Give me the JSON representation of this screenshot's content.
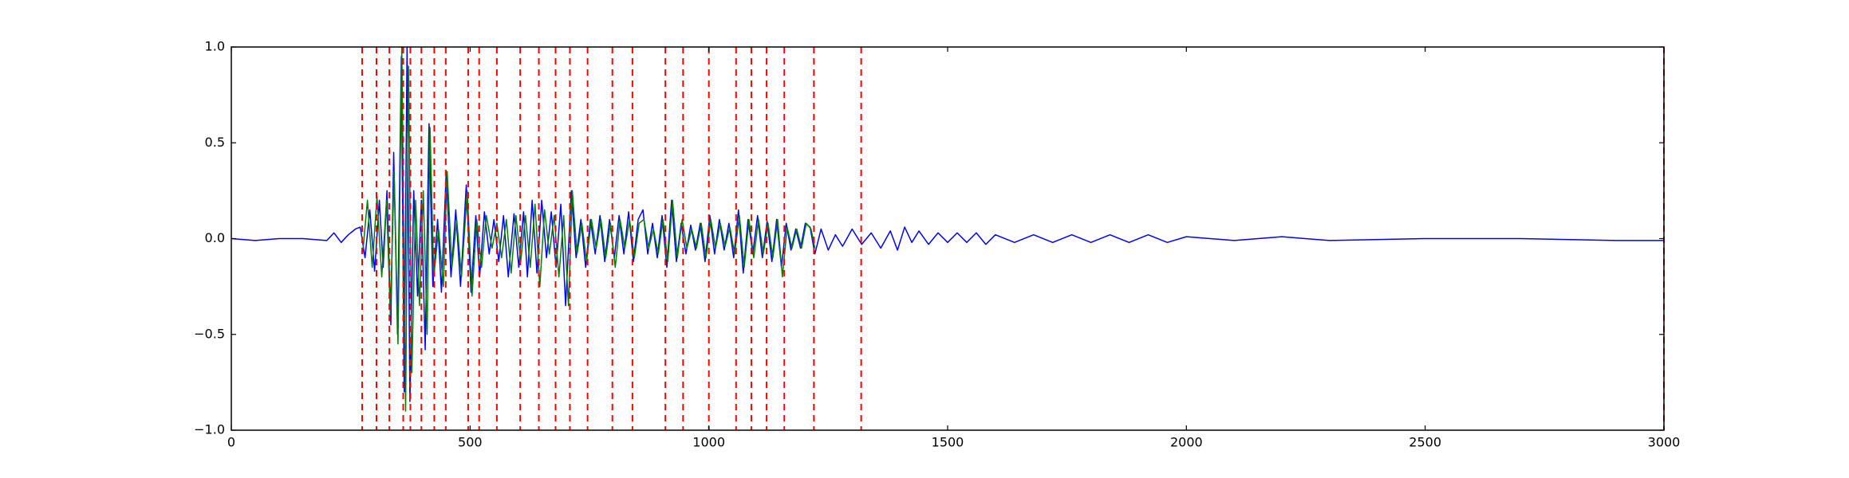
{
  "chart_data": {
    "type": "line",
    "xlim": [
      0,
      3000
    ],
    "ylim": [
      -1,
      1
    ],
    "xticks": [
      0,
      500,
      1000,
      1500,
      2000,
      2500,
      3000
    ],
    "yticks": [
      {
        "value": 1,
        "label": "1.0"
      },
      {
        "value": 0.5,
        "label": "0.5"
      },
      {
        "value": 0,
        "label": "0.0"
      },
      {
        "value": -0.5,
        "label": "−0.5"
      },
      {
        "value": -1,
        "label": "−1.0"
      }
    ],
    "vlines": [
      274,
      304,
      331,
      360,
      375,
      398,
      425,
      449,
      496,
      519,
      556,
      605,
      644,
      679,
      709,
      746,
      798,
      840,
      909,
      946,
      1000,
      1057,
      1089,
      1121,
      1158,
      1220,
      1319,
      3000
    ],
    "vline_color": "#ff0000",
    "series": [
      {
        "color": "#0000ff",
        "x": [
          0,
          50,
          100,
          150,
          200,
          215,
          230,
          245,
          260,
          270,
          280,
          290,
          300,
          310,
          318,
          326,
          334,
          340,
          348,
          356,
          362,
          368,
          374,
          382,
          390,
          398,
          406,
          414,
          422,
          432,
          440,
          450,
          460,
          470,
          480,
          492,
          502,
          512,
          520,
          530,
          540,
          550,
          560,
          570,
          580,
          592,
          602,
          612,
          620,
          630,
          640,
          650,
          660,
          670,
          680,
          690,
          700,
          712,
          722,
          732,
          742,
          752,
          762,
          772,
          782,
          792,
          802,
          812,
          822,
          832,
          842,
          852,
          862,
          872,
          882,
          892,
          902,
          912,
          922,
          932,
          942,
          952,
          962,
          972,
          982,
          992,
          1002,
          1012,
          1022,
          1032,
          1042,
          1052,
          1062,
          1072,
          1082,
          1092,
          1102,
          1112,
          1122,
          1132,
          1142,
          1152,
          1162,
          1172,
          1182,
          1192,
          1202,
          1212,
          1222,
          1235,
          1250,
          1265,
          1280,
          1300,
          1320,
          1340,
          1360,
          1380,
          1395,
          1410,
          1425,
          1440,
          1460,
          1480,
          1500,
          1520,
          1540,
          1560,
          1580,
          1600,
          1640,
          1680,
          1720,
          1760,
          1800,
          1840,
          1880,
          1920,
          1960,
          2000,
          2100,
          2200,
          2300,
          2500,
          2700,
          2900,
          3000
        ],
        "values": [
          0,
          -0.01,
          0,
          0,
          -0.01,
          0.03,
          -0.02,
          0.02,
          0.05,
          0.06,
          -0.1,
          0.15,
          -0.17,
          0.2,
          -0.15,
          0.25,
          -0.45,
          0.45,
          -0.5,
          0.95,
          -0.8,
          1.0,
          -0.85,
          0.25,
          -0.3,
          0.2,
          -0.58,
          0.6,
          -0.25,
          0.1,
          -0.28,
          0.35,
          -0.2,
          0.15,
          -0.25,
          0.28,
          -0.28,
          0.12,
          -0.2,
          0.14,
          -0.08,
          0.1,
          -0.12,
          0.12,
          -0.2,
          0.13,
          -0.15,
          0.14,
          -0.2,
          0.2,
          -0.18,
          0.2,
          -0.1,
          0.14,
          -0.15,
          0.18,
          -0.35,
          0.25,
          -0.1,
          0.1,
          -0.15,
          0.1,
          -0.08,
          0.12,
          -0.12,
          0.1,
          -0.1,
          0.12,
          -0.08,
          0.14,
          -0.12,
          0.1,
          0.15,
          -0.08,
          0.08,
          -0.1,
          0.12,
          -0.15,
          0.2,
          -0.12,
          0.08,
          -0.08,
          0.07,
          -0.06,
          0.08,
          -0.12,
          0.12,
          -0.08,
          0.1,
          -0.06,
          0.08,
          -0.1,
          0.15,
          -0.18,
          0.1,
          -0.08,
          0.12,
          -0.1,
          0.09,
          -0.12,
          0.1,
          -0.15,
          0.08,
          -0.06,
          0.05,
          -0.05,
          0.08,
          0.06,
          -0.08,
          0.05,
          -0.06,
          0.02,
          -0.04,
          0.05,
          -0.03,
          0.03,
          -0.05,
          0.04,
          -0.06,
          0.06,
          -0.02,
          0.04,
          -0.03,
          0.03,
          -0.02,
          0.03,
          -0.02,
          0.03,
          -0.03,
          0.02,
          -0.02,
          0.02,
          -0.02,
          0.02,
          -0.02,
          0.02,
          -0.02,
          0.02,
          -0.02,
          0.01,
          -0.01,
          0.01,
          -0.01,
          0,
          0,
          -0.01,
          -0.01
        ]
      },
      {
        "color": "#008000",
        "x": [
          275,
          285,
          295,
          305,
          315,
          325,
          333,
          341,
          349,
          357,
          365,
          371,
          378,
          386,
          394,
          402,
          410,
          416,
          424,
          434,
          444,
          452,
          462,
          472,
          482,
          494,
          504,
          514,
          524,
          534,
          546,
          556,
          566,
          576,
          586,
          596,
          606,
          616,
          626,
          636,
          646,
          656,
          666,
          676,
          686,
          696,
          706,
          714,
          724,
          734,
          744,
          754,
          764,
          774,
          784,
          794,
          804,
          814,
          824,
          834,
          844,
          854,
          864,
          874,
          884,
          894,
          904,
          914,
          924,
          934,
          944,
          954,
          964,
          974,
          984,
          994,
          1004,
          1014,
          1024,
          1034,
          1044,
          1054,
          1064,
          1074,
          1084,
          1094,
          1104,
          1114,
          1124,
          1134,
          1144,
          1154,
          1164,
          1174,
          1184,
          1194,
          1204,
          1214,
          1222
        ],
        "values": [
          -0.08,
          0.2,
          -0.15,
          0.22,
          -0.2,
          0.2,
          -0.4,
          0.35,
          -0.55,
          1.0,
          -0.9,
          0.9,
          -0.7,
          0.2,
          -0.35,
          0.25,
          -0.5,
          0.58,
          -0.2,
          0.05,
          -0.25,
          0.35,
          -0.15,
          0.1,
          -0.2,
          0.25,
          -0.3,
          0.1,
          -0.15,
          0.12,
          -0.05,
          0.08,
          -0.1,
          0.1,
          -0.18,
          0.12,
          -0.12,
          0.12,
          -0.15,
          0.18,
          -0.25,
          0.15,
          -0.08,
          0.12,
          -0.2,
          0.12,
          -0.35,
          0.25,
          -0.08,
          0.08,
          -0.12,
          0.1,
          -0.05,
          0.1,
          -0.1,
          0.08,
          -0.15,
          0.1,
          -0.05,
          0.1,
          -0.1,
          0.08,
          0.1,
          -0.05,
          0.05,
          -0.08,
          0.1,
          -0.12,
          0.2,
          -0.1,
          0.1,
          -0.05,
          0.05,
          -0.05,
          0.08,
          -0.1,
          0.1,
          -0.05,
          0.08,
          -0.04,
          0.06,
          -0.08,
          0.12,
          -0.15,
          0.1,
          -0.1,
          0.1,
          -0.08,
          0.08,
          -0.1,
          0.1,
          -0.2,
          0.06,
          -0.05,
          0.05,
          -0.05,
          0.08,
          0.05,
          -0.05
        ]
      }
    ]
  }
}
